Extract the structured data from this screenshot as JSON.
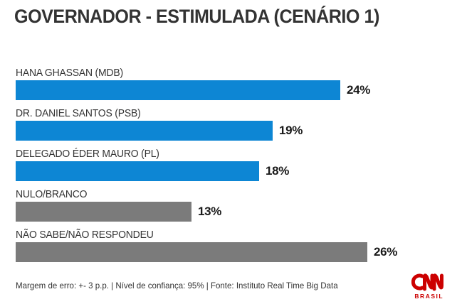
{
  "chart_data": {
    "type": "bar",
    "orientation": "horizontal",
    "title": "GOVERNADOR - ESTIMULADA (CENÁRIO 1)",
    "categories": [
      "HANA GHASSAN (MDB)",
      "DR. DANIEL SANTOS (PSB)",
      "DELEGADO ÉDER MAURO (PL)",
      "NULO/BRANCO",
      "NÃO SABE/NÃO RESPONDEU"
    ],
    "values": [
      24,
      19,
      18,
      13,
      26
    ],
    "value_labels": [
      "24%",
      "19%",
      "18%",
      "13%",
      "26%"
    ],
    "unit": "%",
    "bar_colors": [
      "#0d86d4",
      "#0d86d4",
      "#0d86d4",
      "#7b7b7b",
      "#7b7b7b"
    ],
    "xlim": [
      0,
      30
    ],
    "grid": false,
    "legend": false,
    "value_label_position": "right-of-bar"
  },
  "footer": {
    "note": "Margem de erro: +- 3 p.p. | Nível de confiança: 95% | Fonte: Instituto Real Time Big Data"
  },
  "logo": {
    "brand": "CNN",
    "region_label": "BRASIL",
    "color": "#cc0000"
  },
  "colors": {
    "bar_blue": "#0d86d4",
    "bar_gray": "#7b7b7b",
    "title_text": "#333333",
    "value_text": "#1a1a1a",
    "logo_red": "#cc0000"
  }
}
